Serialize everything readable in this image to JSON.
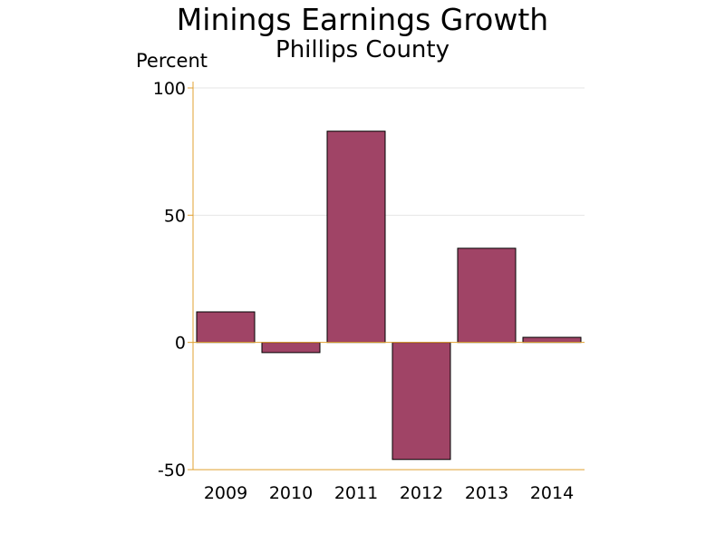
{
  "chart_data": {
    "type": "bar",
    "title": "Minings Earnings Growth",
    "subtitle": "Phillips County",
    "ylabel": "Percent",
    "categories": [
      "2009",
      "2010",
      "2011",
      "2012",
      "2013",
      "2014"
    ],
    "values": [
      12,
      -4,
      83,
      -46,
      37,
      2
    ],
    "ylim": [
      -50,
      100
    ],
    "yticks": [
      100,
      50,
      0,
      -50
    ],
    "grid": true,
    "colors": {
      "bar_fill": "#a04466",
      "bar_stroke": "#000000",
      "axis": "#e0a030",
      "grid": "#e6e6e6"
    }
  }
}
